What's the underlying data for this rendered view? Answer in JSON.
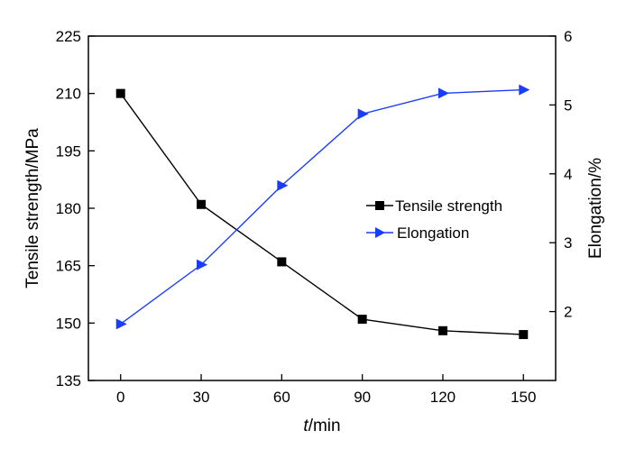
{
  "chart_data": {
    "type": "line",
    "x": [
      0,
      30,
      60,
      90,
      120,
      150
    ],
    "xlabel_italic": "t",
    "xlabel_rest": "/min",
    "xlim": [
      -12,
      162
    ],
    "xticks": [
      "0",
      "30",
      "60",
      "90",
      "120",
      "150"
    ],
    "ylabel": "Tensile strength/MPa",
    "ylim": [
      135,
      225
    ],
    "yticks": [
      "135",
      "150",
      "165",
      "180",
      "195",
      "210",
      "225"
    ],
    "y2label": "Elongation/%",
    "y2lim": [
      1,
      6
    ],
    "y2ticks": [
      "2",
      "3",
      "4",
      "5",
      "6"
    ],
    "grid": false,
    "legend_position": "center-right",
    "series": [
      {
        "name": "Tensile strength",
        "axis": "left",
        "color": "#000000",
        "marker": "square",
        "values": [
          210,
          181,
          166,
          151,
          148,
          147
        ]
      },
      {
        "name": "Elongation",
        "axis": "right",
        "color": "#1a3cff",
        "marker": "triangle-right",
        "values": [
          1.82,
          2.68,
          3.83,
          4.87,
          5.17,
          5.22
        ]
      }
    ]
  }
}
